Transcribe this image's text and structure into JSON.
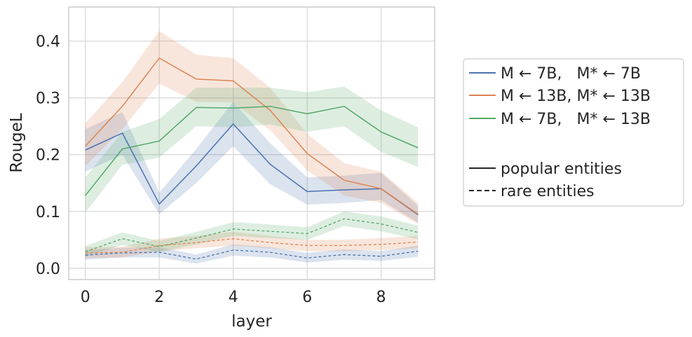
{
  "chart_data": {
    "type": "line",
    "xlabel": "layer",
    "ylabel": "RougeL",
    "xlim": [
      -0.45,
      9.45
    ],
    "ylim": [
      -0.02,
      0.46
    ],
    "xticks": [
      0,
      2,
      4,
      6,
      8
    ],
    "yticks": [
      0.0,
      0.1,
      0.2,
      0.3,
      0.4
    ],
    "xtick_labels": [
      "0",
      "2",
      "4",
      "6",
      "8"
    ],
    "ytick_labels": [
      "0.0",
      "0.1",
      "0.2",
      "0.3",
      "0.4"
    ],
    "grid": true,
    "legend_placement": "outside right",
    "x": [
      0,
      1,
      2,
      3,
      4,
      5,
      6,
      7,
      8,
      9
    ],
    "series": [
      {
        "name": "M ← 7B,   M* ← 7B",
        "color": "#4c72b0",
        "linestyle": "solid",
        "values": [
          0.208,
          0.238,
          0.113,
          0.18,
          0.254,
          0.183,
          0.135,
          0.138,
          0.14,
          0.094
        ],
        "lower": [
          0.17,
          0.2,
          0.095,
          0.15,
          0.215,
          0.148,
          0.112,
          0.115,
          0.12,
          0.08
        ],
        "upper": [
          0.245,
          0.275,
          0.133,
          0.21,
          0.293,
          0.22,
          0.16,
          0.163,
          0.168,
          0.11
        ]
      },
      {
        "name": "M ← 13B, M* ← 13B",
        "color": "#dd8452",
        "linestyle": "solid",
        "values": [
          0.215,
          0.285,
          0.37,
          0.333,
          0.33,
          0.278,
          0.202,
          0.155,
          0.14,
          0.095
        ],
        "lower": [
          0.18,
          0.245,
          0.325,
          0.293,
          0.292,
          0.243,
          0.172,
          0.128,
          0.115,
          0.078
        ],
        "upper": [
          0.255,
          0.328,
          0.418,
          0.376,
          0.37,
          0.318,
          0.237,
          0.185,
          0.17,
          0.115
        ]
      },
      {
        "name": "M ← 7B,   M* ← 13B",
        "color": "#55a868",
        "linestyle": "solid",
        "values": [
          0.128,
          0.21,
          0.224,
          0.283,
          0.282,
          0.285,
          0.272,
          0.285,
          0.24,
          0.212
        ],
        "lower": [
          0.098,
          0.182,
          0.195,
          0.25,
          0.248,
          0.253,
          0.24,
          0.25,
          0.205,
          0.178
        ],
        "upper": [
          0.16,
          0.24,
          0.263,
          0.318,
          0.318,
          0.318,
          0.31,
          0.32,
          0.278,
          0.248
        ]
      },
      {
        "name": "M ← 7B,   M* ← 7B",
        "color": "#4c72b0",
        "linestyle": "dashed",
        "in_legend": false,
        "values": [
          0.023,
          0.027,
          0.028,
          0.016,
          0.032,
          0.028,
          0.018,
          0.024,
          0.021,
          0.03
        ],
        "lower": [
          0.015,
          0.019,
          0.019,
          0.008,
          0.022,
          0.019,
          0.01,
          0.015,
          0.013,
          0.02
        ],
        "upper": [
          0.032,
          0.036,
          0.037,
          0.024,
          0.042,
          0.037,
          0.027,
          0.033,
          0.03,
          0.04
        ]
      },
      {
        "name": "M ← 13B, M* ← 13B",
        "color": "#dd8452",
        "linestyle": "dashed",
        "in_legend": false,
        "values": [
          0.027,
          0.028,
          0.04,
          0.045,
          0.052,
          0.045,
          0.04,
          0.04,
          0.042,
          0.046
        ],
        "lower": [
          0.018,
          0.019,
          0.03,
          0.035,
          0.04,
          0.035,
          0.03,
          0.03,
          0.032,
          0.035
        ],
        "upper": [
          0.037,
          0.038,
          0.052,
          0.057,
          0.064,
          0.057,
          0.05,
          0.05,
          0.053,
          0.057
        ]
      },
      {
        "name": "M ← 7B,   M* ← 13B",
        "color": "#55a868",
        "linestyle": "dashed",
        "in_legend": false,
        "values": [
          0.029,
          0.052,
          0.038,
          0.053,
          0.069,
          0.065,
          0.061,
          0.087,
          0.078,
          0.063
        ],
        "lower": [
          0.02,
          0.041,
          0.028,
          0.042,
          0.057,
          0.053,
          0.05,
          0.074,
          0.065,
          0.051
        ],
        "upper": [
          0.039,
          0.063,
          0.048,
          0.064,
          0.081,
          0.077,
          0.072,
          0.1,
          0.091,
          0.075
        ]
      }
    ],
    "legend": [
      {
        "label": "M ← 7B,   M* ← 7B",
        "color": "#4c72b0",
        "linestyle": "solid"
      },
      {
        "label": "M ← 13B, M* ← 13B",
        "color": "#dd8452",
        "linestyle": "solid"
      },
      {
        "label": "M ← 7B,   M* ← 13B",
        "color": "#55a868",
        "linestyle": "solid"
      },
      {
        "label": "",
        "color": "",
        "linestyle": "none"
      },
      {
        "label": "popular entities",
        "color": "#262626",
        "linestyle": "solid"
      },
      {
        "label": "rare entities",
        "color": "#262626",
        "linestyle": "dashed"
      }
    ]
  }
}
